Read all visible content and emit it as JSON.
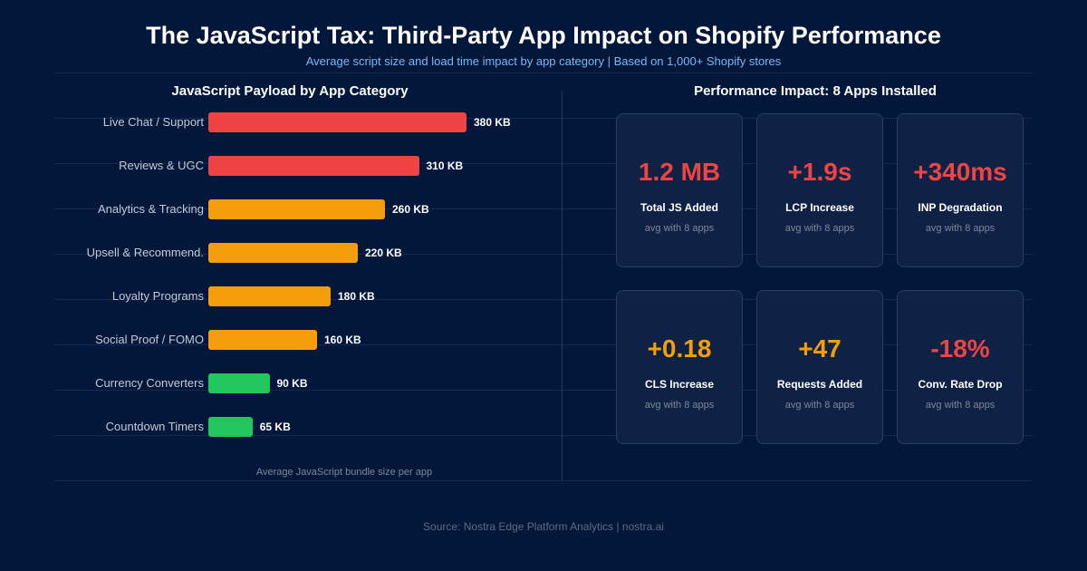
{
  "header": {
    "title": "The JavaScript Tax: Third-Party App Impact on Shopify Performance",
    "subtitle": "Average script size and load time impact by app category  |  Based on 1,000+ Shopify stores"
  },
  "chart_data": {
    "type": "bar",
    "orientation": "horizontal",
    "title": "JavaScript Payload by App Category",
    "note": "Average JavaScript bundle size per app",
    "unit": "KB",
    "categories": [
      "Live Chat / Support",
      "Reviews & UGC",
      "Analytics & Tracking",
      "Upsell & Recommend.",
      "Loyalty Programs",
      "Social Proof / FOMO",
      "Currency Converters",
      "Countdown Timers"
    ],
    "values": [
      380,
      310,
      260,
      220,
      180,
      160,
      90,
      65
    ],
    "value_labels": [
      "380 KB",
      "310 KB",
      "260 KB",
      "220 KB",
      "180 KB",
      "160 KB",
      "90 KB",
      "65 KB"
    ],
    "colors": [
      "#ef4444",
      "#ef4444",
      "#f59e0b",
      "#f59e0b",
      "#f59e0b",
      "#f59e0b",
      "#22c55e",
      "#22c55e"
    ],
    "grid": true
  },
  "impact": {
    "title": "Performance Impact: 8 Apps Installed",
    "cards": [
      {
        "value": "1.2 MB",
        "label": "Total JS Added",
        "sub": "avg with 8 apps",
        "color": "#ef4444"
      },
      {
        "value": "+1.9s",
        "label": "LCP Increase",
        "sub": "avg with 8 apps",
        "color": "#ef4444"
      },
      {
        "value": "+340ms",
        "label": "INP Degradation",
        "sub": "avg with 8 apps",
        "color": "#ef4444"
      },
      {
        "value": "+0.18",
        "label": "CLS Increase",
        "sub": "avg with 8 apps",
        "color": "#f59e0b"
      },
      {
        "value": "+47",
        "label": "Requests Added",
        "sub": "avg with 8 apps",
        "color": "#f59e0b"
      },
      {
        "value": "-18%",
        "label": "Conv. Rate Drop",
        "sub": "avg with 8 apps",
        "color": "#ef4444"
      }
    ]
  },
  "footer": {
    "source": "Source: Nostra Edge Platform Analytics  |  nostra.ai"
  }
}
